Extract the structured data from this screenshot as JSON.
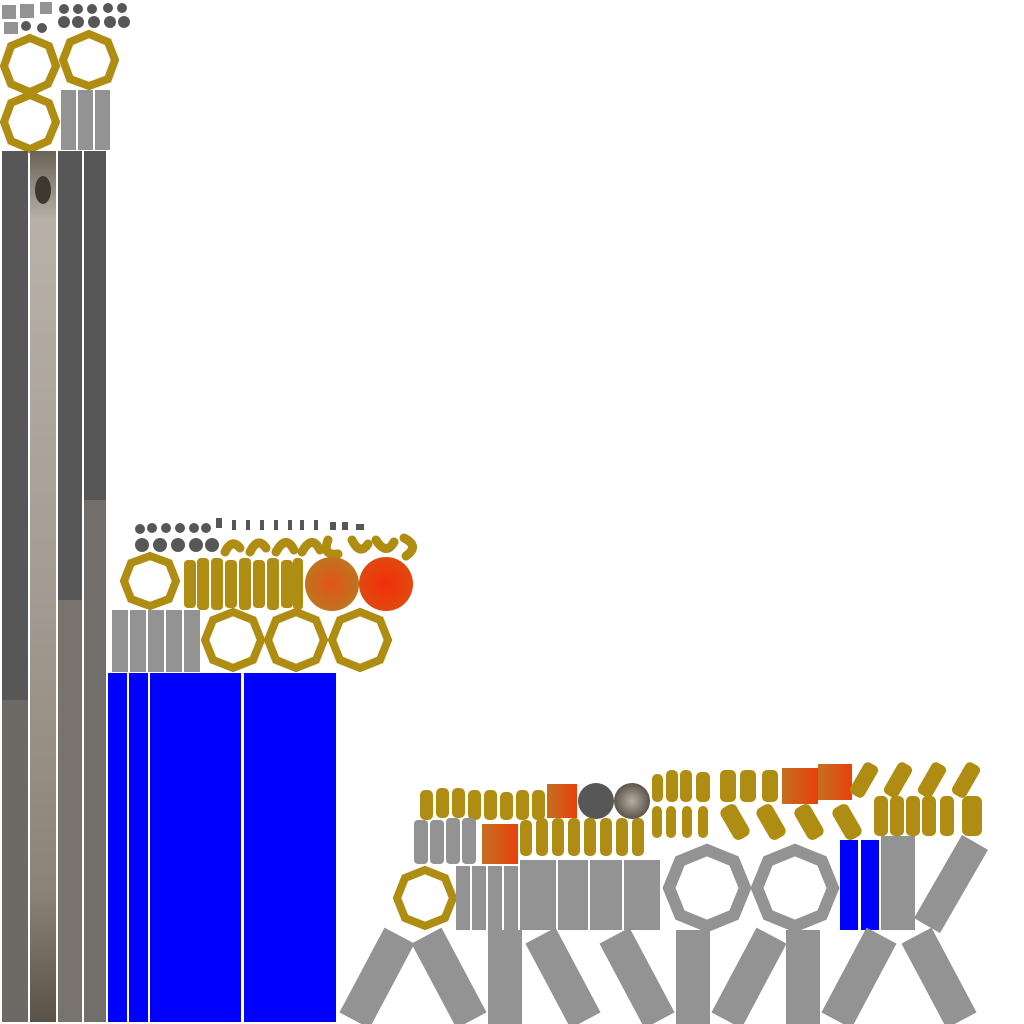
{
  "atlas": {
    "colors": {
      "background": "#ffffff",
      "steel_dark": "#575757",
      "steel_light": "#939393",
      "gold": "#ae8d12",
      "blue": "#0000ff",
      "orange": "#d0551a",
      "red_orange": "#e73a06",
      "rock_light": "#b3aca3",
      "rock_dark": "#5f574e"
    },
    "regions": [
      "top-left-tiles",
      "mid-left-tiles",
      "bottom-right-tiles"
    ]
  }
}
